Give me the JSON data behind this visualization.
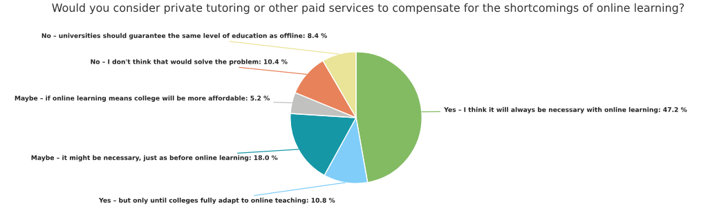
{
  "chart_data": {
    "type": "pie",
    "title": "Would you consider private tutoring or other paid services to compensate for the shortcomings of online learning?",
    "categories": [
      "Yes – I think it will always be necessary with online learning",
      "Yes – but only until colleges fully adapt to online teaching",
      "Maybe – it might be necessary, just as before online learning",
      "Maybe – if online learning means college will be more affordable",
      "No – I don't think that would solve the problem",
      "No – universities should guarantee the same level of education as offline"
    ],
    "values": [
      47.2,
      10.8,
      18.0,
      5.2,
      10.4,
      8.4
    ],
    "colors": [
      "#83bb63",
      "#7fcdf8",
      "#1697a6",
      "#c1c1bf",
      "#e8825a",
      "#e9e497"
    ],
    "value_labels": [
      "47.2 %",
      "10.8 %",
      "18.0 %",
      "5.2 %",
      "10.4 %",
      "8.4 %"
    ],
    "legend": false
  }
}
